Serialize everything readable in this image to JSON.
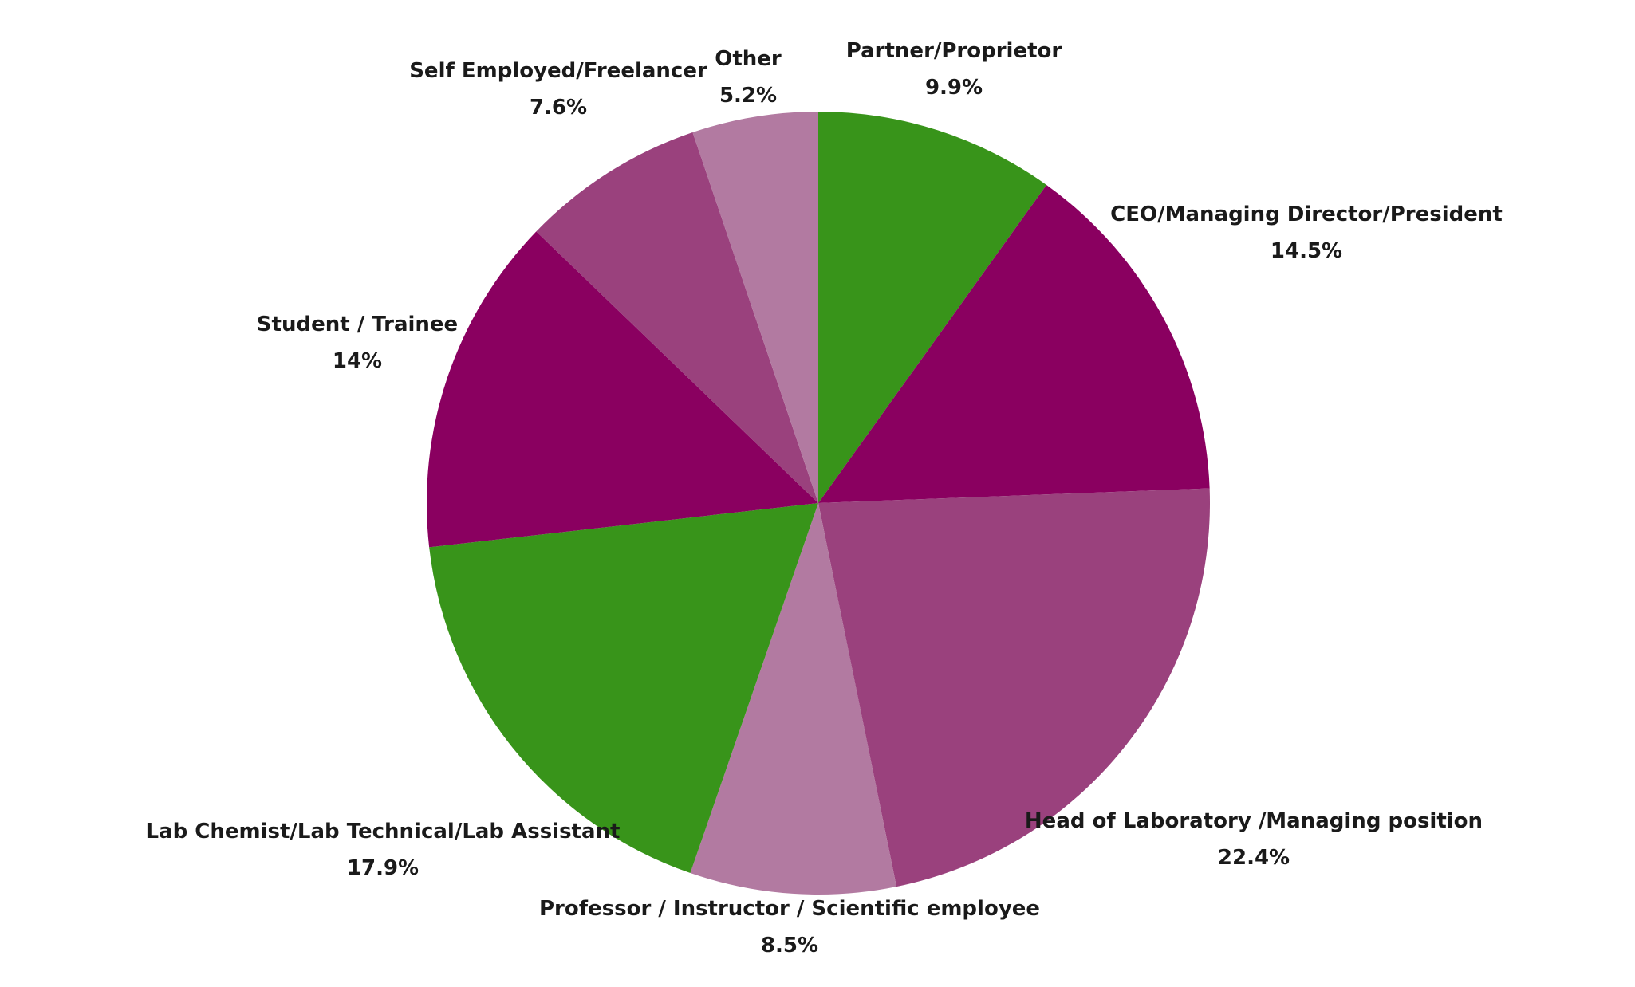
{
  "chart_data": {
    "type": "pie",
    "title": "",
    "start_angle_deg": -90,
    "direction": "clockwise",
    "legend": "none",
    "labels_position": "outside",
    "slices": [
      {
        "label": "Partner/Proprietor",
        "value": 9.9,
        "value_label": "9.9%",
        "color": "#38941A"
      },
      {
        "label": "CEO/Managing Director/President",
        "value": 14.5,
        "value_label": "14.5%",
        "color": "#8A0060"
      },
      {
        "label": "Head of Laboratory /Managing position",
        "value": 22.4,
        "value_label": "22.4%",
        "color": "#9A417D"
      },
      {
        "label": "Professor / Instructor / Scientific employee",
        "value": 8.5,
        "value_label": "8.5%",
        "color": "#B27AA1"
      },
      {
        "label": "Lab Chemist/Lab Technical/Lab Assistant",
        "value": 17.9,
        "value_label": "17.9%",
        "color": "#38941A"
      },
      {
        "label": "Student / Trainee",
        "value": 14,
        "value_label": "14%",
        "color": "#8A0060"
      },
      {
        "label": "Self Employed/Freelancer",
        "value": 7.6,
        "value_label": "7.6%",
        "color": "#9A417D"
      },
      {
        "label": "Other",
        "value": 5.2,
        "value_label": "5.2%",
        "color": "#B27AA1"
      }
    ]
  }
}
